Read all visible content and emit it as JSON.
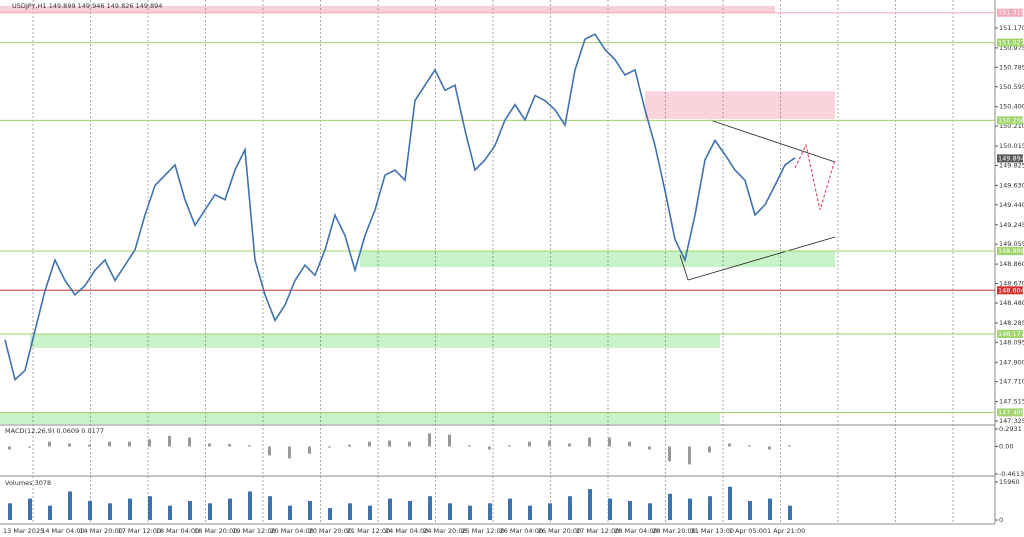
{
  "chart_data": {
    "type": "line",
    "header": "USDJPY,H1  149.899 149.946 149.826 149.894",
    "x_labels": [
      "13 Mar 2025",
      "14 Mar 04:00",
      "14 Mar 20:00",
      "17 Mar 12:00",
      "18 Mar 04:00",
      "18 Mar 20:00",
      "19 Mar 12:00",
      "20 Mar 04:00",
      "20 Mar 20:00",
      "21 Mar 12:00",
      "24 Mar 04:00",
      "24 Mar 20:00",
      "25 Mar 12:00",
      "26 Mar 04:00",
      "26 Mar 20:00",
      "27 Mar 12:00",
      "28 Mar 04:00",
      "28 Mar 20:00",
      "31 Mar 13:00",
      "1 Apr 05:00",
      "1 Apr 21:00"
    ],
    "price": {
      "color": "#3f72ad",
      "values": [
        148.12,
        147.73,
        147.82,
        148.21,
        148.6,
        148.9,
        148.7,
        148.56,
        148.65,
        148.8,
        148.9,
        148.7,
        148.85,
        149.0,
        149.34,
        149.63,
        149.73,
        149.83,
        149.49,
        149.24,
        149.39,
        149.54,
        149.49,
        149.78,
        149.98,
        148.9,
        148.56,
        148.31,
        148.46,
        148.7,
        148.85,
        148.75,
        149.0,
        149.34,
        149.14,
        148.8,
        149.14,
        149.39,
        149.73,
        149.78,
        149.68,
        150.46,
        150.61,
        150.76,
        150.56,
        150.61,
        150.17,
        149.78,
        149.88,
        150.02,
        150.27,
        150.42,
        150.27,
        150.51,
        150.46,
        150.37,
        150.22,
        150.76,
        151.06,
        151.11,
        150.96,
        150.86,
        150.71,
        150.76,
        150.37,
        150.02,
        149.58,
        149.1,
        148.9,
        149.34,
        149.88,
        150.07,
        149.93,
        149.78,
        149.68,
        149.34,
        149.44,
        149.63,
        149.83,
        149.9
      ]
    },
    "ylim": [
      147.296,
      151.385
    ],
    "yticks": [
      {
        "value": 151.17,
        "label": "151.170"
      },
      150.975,
      150.785,
      150.595,
      {
        "value": 150.4,
        "label": "150.400"
      },
      {
        "value": 150.21,
        "label": "150.210"
      },
      150.015,
      149.825,
      {
        "value": 149.63,
        "label": "149.630"
      },
      {
        "value": 149.44,
        "label": "149.440"
      },
      149.245,
      149.055,
      {
        "value": 148.86,
        "label": "148.860"
      },
      {
        "value": 148.67,
        "label": "148.670"
      },
      {
        "value": 148.48,
        "label": "148.480"
      },
      148.285,
      148.095,
      {
        "value": 147.9,
        "label": "147.900"
      },
      {
        "value": 147.71,
        "label": "147.710"
      },
      147.515,
      147.325
    ],
    "levels": [
      {
        "value": 151.319,
        "color": "#f2a7b8"
      },
      {
        "value": 151.027,
        "color": "#9fd46a"
      },
      {
        "value": 150.266,
        "color": "#9fd46a"
      },
      {
        "value": 149.894,
        "color": "#555555"
      },
      {
        "value": 148.988,
        "color": "#9fd46a"
      },
      {
        "value": 148.604,
        "color": "#d0312d"
      },
      {
        "value": 148.177,
        "color": "#9fd46a"
      },
      {
        "value": 147.409,
        "color": "#9fd46a"
      }
    ],
    "zones": [
      {
        "from": 151.319,
        "to": 151.385,
        "color": "#f9d0da"
      },
      {
        "from": 150.28,
        "to": 150.55,
        "color": "#fbd3dc"
      },
      {
        "from": 148.83,
        "to": 148.988,
        "color": "#c8f2c8"
      },
      {
        "from": 148.04,
        "to": 148.177,
        "color": "#c8f2c8"
      },
      {
        "from": 147.296,
        "to": 147.409,
        "color": "#c8f2c8"
      }
    ],
    "macd": {
      "label": "MACD(12,26,9) 0.0609 0.0177",
      "ylim": [
        -0.4613,
        0.2931
      ],
      "yticks": [
        0.2931,
        {
          "value": 0,
          "label": "0.00"
        },
        -0.4613
      ],
      "color": "#999999",
      "values": [
        -0.05,
        -0.02,
        0.08,
        0.05,
        0.03,
        0.08,
        0.08,
        0.12,
        0.18,
        0.15,
        0.05,
        0.04,
        0.02,
        -0.15,
        -0.2,
        -0.12,
        -0.02,
        0.03,
        0.08,
        0.1,
        0.08,
        0.22,
        0.2,
        0.02,
        -0.05,
        0.02,
        0.08,
        0.1,
        0.05,
        0.15,
        0.15,
        0.08,
        -0.05,
        -0.25,
        -0.3,
        -0.1,
        0.05,
        0.02,
        -0.05,
        0.02
      ]
    },
    "volumes": {
      "label": "Volumes 3078",
      "ylim": [
        0,
        15960
      ],
      "yticks": [
        15960,
        0
      ],
      "color": "#3f72ad",
      "values": [
        7000,
        9000,
        6000,
        12000,
        8000,
        7000,
        9000,
        10000,
        6000,
        8000,
        7000,
        9000,
        12000,
        10000,
        6000,
        8000,
        5000,
        7000,
        6000,
        9000,
        8000,
        10000,
        7000,
        6000,
        7000,
        9000,
        6000,
        7000,
        10000,
        13000,
        9000,
        8000,
        7000,
        11000,
        9000,
        10000,
        14000,
        8000,
        9000,
        6000
      ]
    }
  }
}
